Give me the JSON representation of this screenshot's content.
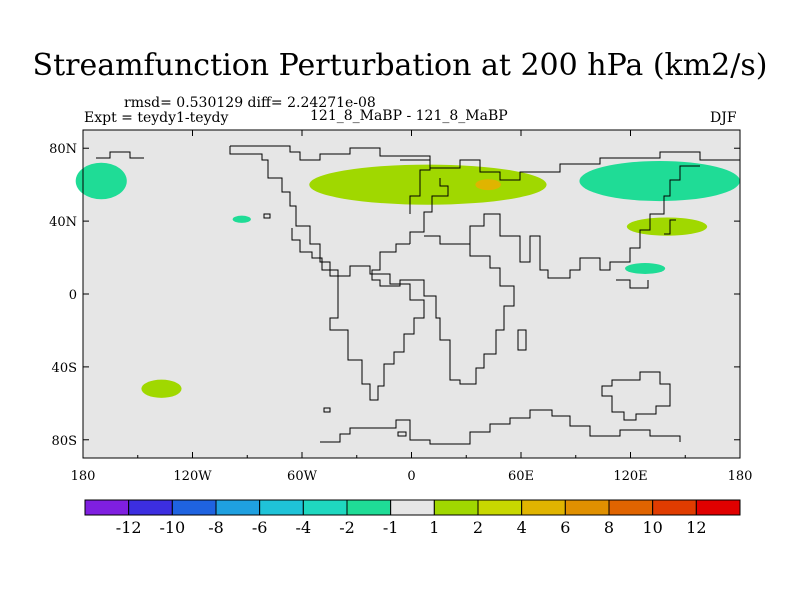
{
  "chart_data": {
    "type": "contour-map",
    "title": "Streamfunction Perturbation at 200 hPa (km2/s)",
    "stats_text": "rmsd= 0.530129 diff= 2.24271e-08",
    "experiment_text": "Expt = teydy1-teydy",
    "center_text": "121_8_MaBP - 121_8_MaBP",
    "season": "DJF",
    "lon_range": [
      -180,
      180
    ],
    "lat_range": [
      -90,
      90
    ],
    "x_ticks": [
      {
        "value": -180,
        "label": "180"
      },
      {
        "value": -120,
        "label": "120W"
      },
      {
        "value": -60,
        "label": "60W"
      },
      {
        "value": 0,
        "label": "0"
      },
      {
        "value": 60,
        "label": "60E"
      },
      {
        "value": 120,
        "label": "120E"
      },
      {
        "value": 180,
        "label": "180"
      }
    ],
    "y_ticks": [
      {
        "value": 80,
        "label": "80N"
      },
      {
        "value": 40,
        "label": "40N"
      },
      {
        "value": 0,
        "label": "0"
      },
      {
        "value": -40,
        "label": "40S"
      },
      {
        "value": -80,
        "label": "80S"
      }
    ],
    "colorbar": {
      "colors": [
        "#7f1fe0",
        "#3c2ee0",
        "#1f63e0",
        "#1fa0e0",
        "#1fc3d8",
        "#1fd8c0",
        "#1fdc96",
        "#e6e6e6",
        "#a0d800",
        "#c8d800",
        "#e0b400",
        "#e09000",
        "#e06400",
        "#e03c00",
        "#e00000"
      ],
      "labels": [
        "-12",
        "-10",
        "-8",
        "-6",
        "-4",
        "-2",
        "-1",
        "1",
        "2",
        "4",
        "6",
        "8",
        "10",
        "12"
      ]
    },
    "anomaly_regions": [
      {
        "name": "green-nw-atlantic",
        "level": -1,
        "lon": -170,
        "lat": 62,
        "rx": 14,
        "ry": 10
      },
      {
        "name": "green-small-pacific",
        "level": -1,
        "lon": -93,
        "lat": 41,
        "rx": 5,
        "ry": 2
      },
      {
        "name": "lime-south-pacific",
        "level": 1,
        "lon": -137,
        "lat": -52,
        "rx": 11,
        "ry": 5
      },
      {
        "name": "lime-eurasia",
        "level": 1,
        "lon": 9,
        "lat": 60,
        "rx": 65,
        "ry": 11
      },
      {
        "name": "orange-eurasia-core",
        "level": 4,
        "lon": 42,
        "lat": 60,
        "rx": 7,
        "ry": 3
      },
      {
        "name": "green-north-pacific",
        "level": -1,
        "lon": 136,
        "lat": 62,
        "rx": 44,
        "ry": 11
      },
      {
        "name": "lime-north-pacific",
        "level": 1,
        "lon": 140,
        "lat": 37,
        "rx": 22,
        "ry": 5
      },
      {
        "name": "green-west-pacific",
        "level": -1,
        "lon": 128,
        "lat": 14,
        "rx": 11,
        "ry": 3
      }
    ]
  }
}
